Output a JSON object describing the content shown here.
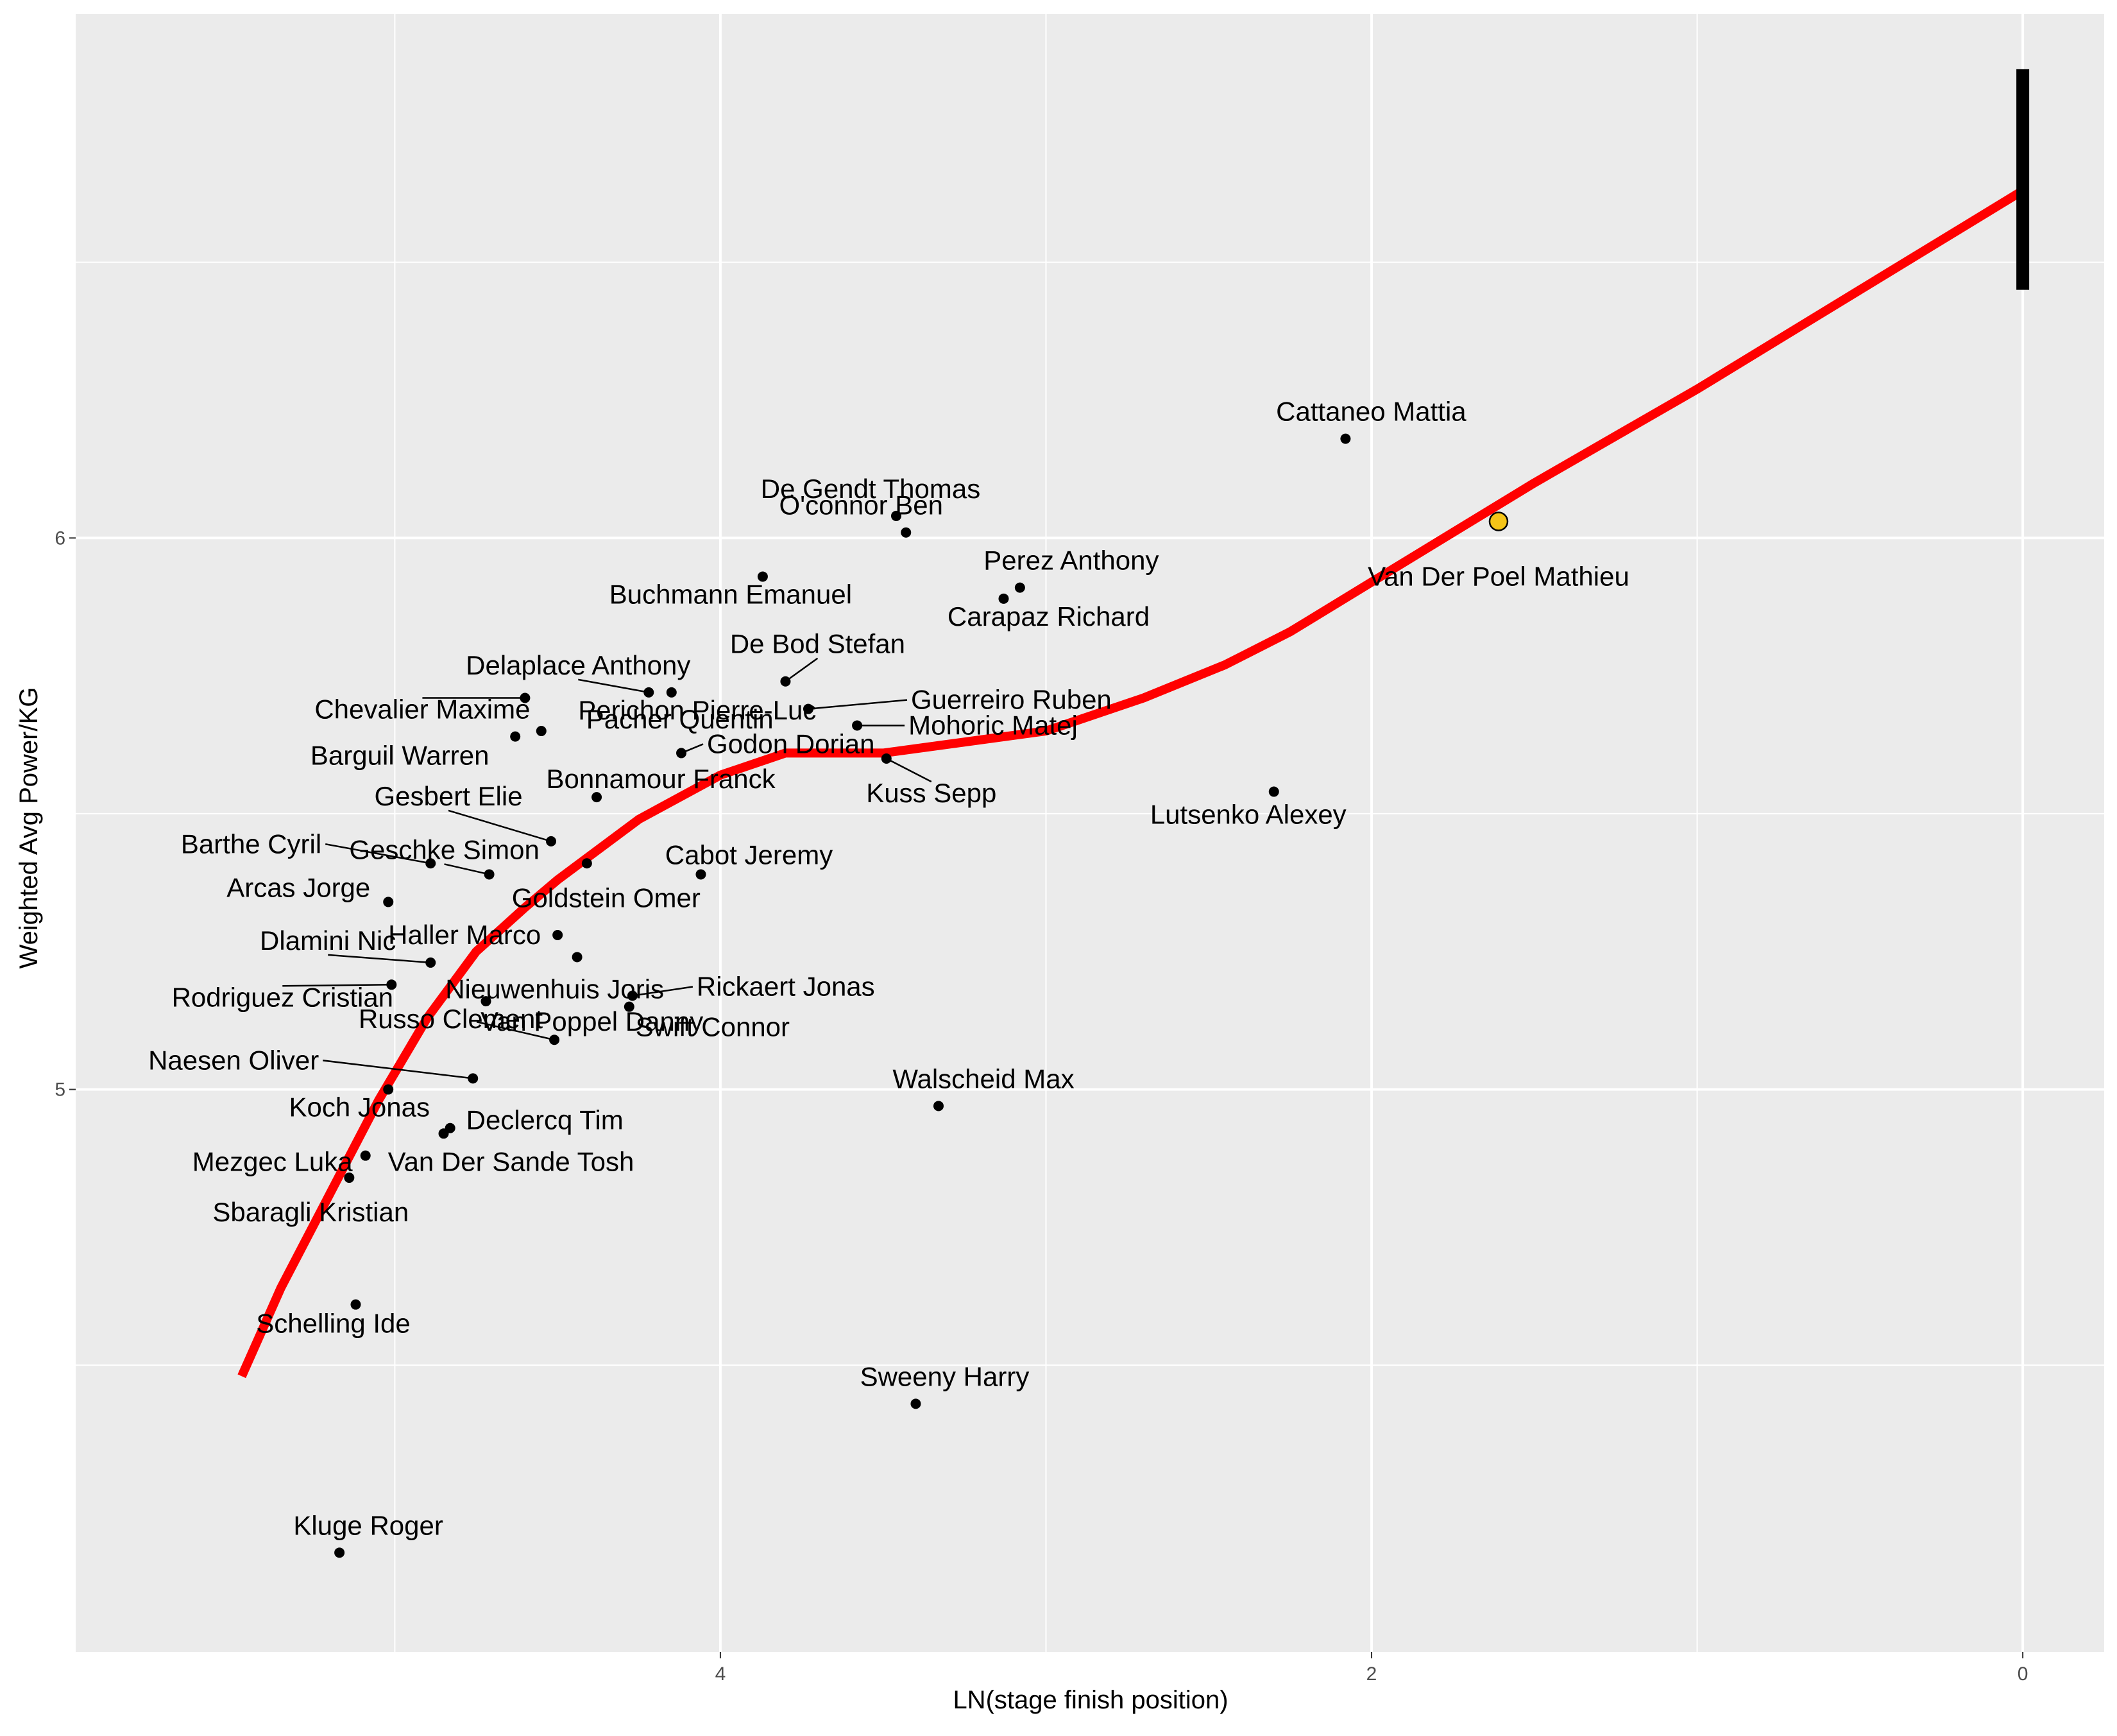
{
  "chart_data": {
    "type": "scatter",
    "xlabel": "LN(stage finish position)",
    "ylabel": "Weighted Avg Power/KG",
    "x_reversed": true,
    "xlim": [
      5.98,
      -0.25
    ],
    "ylim": [
      3.98,
      6.95
    ],
    "xticks": [
      4,
      2,
      0
    ],
    "yticks": [
      5,
      6
    ],
    "grid": true,
    "legend": "none",
    "colors": {
      "panel": "#ebebeb",
      "grid": "#ffffff",
      "points": "#000000",
      "trend_line": "#ff0000",
      "highlight_fill": "#f5c518",
      "error_bar": "#000000",
      "tick_text": "#4d4d4d"
    },
    "points": [
      {
        "name": "Cattaneo Mattia",
        "x": 2.08,
        "y": 6.18
      },
      {
        "name": "De Gendt Thomas",
        "x": 3.46,
        "y": 6.04
      },
      {
        "name": "O'connor Ben",
        "x": 3.43,
        "y": 6.01
      },
      {
        "name": "Buchmann Emanuel",
        "x": 3.87,
        "y": 5.93
      },
      {
        "name": "Perez Anthony",
        "x": 3.08,
        "y": 5.91
      },
      {
        "name": "Carapaz Richard",
        "x": 3.13,
        "y": 5.89
      },
      {
        "name": "De Bod Stefan",
        "x": 3.8,
        "y": 5.74
      },
      {
        "name": "Delaplace Anthony",
        "x": 4.22,
        "y": 5.72
      },
      {
        "name": "Perichon Pierre-Luc",
        "x": 4.15,
        "y": 5.72
      },
      {
        "name": "Chevalier Maxime",
        "x": 4.6,
        "y": 5.71
      },
      {
        "name": "Guerreiro Ruben",
        "x": 3.73,
        "y": 5.69
      },
      {
        "name": "Pacher Quentin",
        "x": 4.55,
        "y": 5.65
      },
      {
        "name": "Mohoric Matej",
        "x": 3.58,
        "y": 5.66
      },
      {
        "name": "Barguil Warren",
        "x": 4.63,
        "y": 5.64
      },
      {
        "name": "Godon Dorian",
        "x": 4.12,
        "y": 5.61
      },
      {
        "name": "Kuss Sepp",
        "x": 3.49,
        "y": 5.6
      },
      {
        "name": "Bonnamour Franck",
        "x": 4.38,
        "y": 5.53
      },
      {
        "name": "Lutsenko Alexey",
        "x": 2.3,
        "y": 5.54
      },
      {
        "name": "Gesbert Elie",
        "x": 4.52,
        "y": 5.45
      },
      {
        "name": "Barthe Cyril",
        "x": 4.89,
        "y": 5.41
      },
      {
        "name": "Geschke Simon",
        "x": 4.71,
        "y": 5.39
      },
      {
        "name": "Goldstein Omer",
        "x": 4.41,
        "y": 5.41
      },
      {
        "name": "Cabot Jeremy",
        "x": 4.06,
        "y": 5.39
      },
      {
        "name": "Arcas Jorge",
        "x": 5.02,
        "y": 5.34
      },
      {
        "name": "Haller Marco",
        "x": 4.5,
        "y": 5.28
      },
      {
        "name": "Nieuwenhuis Joris",
        "x": 4.44,
        "y": 5.24
      },
      {
        "name": "Dlamini Nic",
        "x": 4.89,
        "y": 5.23
      },
      {
        "name": "Rodriguez Cristian",
        "x": 5.01,
        "y": 5.19
      },
      {
        "name": "Rickaert Jonas",
        "x": 4.27,
        "y": 5.17
      },
      {
        "name": "Swift Connor",
        "x": 4.28,
        "y": 5.15
      },
      {
        "name": "Russo Clement",
        "x": 4.72,
        "y": 5.16
      },
      {
        "name": "Van Poppel Danny",
        "x": 4.51,
        "y": 5.09
      },
      {
        "name": "Naesen Oliver",
        "x": 4.76,
        "y": 5.02
      },
      {
        "name": "Walscheid Max",
        "x": 3.33,
        "y": 4.97
      },
      {
        "name": "Koch Jonas",
        "x": 5.02,
        "y": 5.0
      },
      {
        "name": "Declercq Tim",
        "x": 4.83,
        "y": 4.93
      },
      {
        "name": "Van Der Sande Tosh",
        "x": 4.85,
        "y": 4.92
      },
      {
        "name": "Mezgec Luka",
        "x": 5.09,
        "y": 4.88
      },
      {
        "name": "Sbaragli Kristian",
        "x": 5.14,
        "y": 4.84
      },
      {
        "name": "Schelling Ide",
        "x": 5.12,
        "y": 4.61
      },
      {
        "name": "Sweeny Harry",
        "x": 3.4,
        "y": 4.43
      },
      {
        "name": "Kluge Roger",
        "x": 5.17,
        "y": 4.16
      }
    ],
    "highlight": {
      "name": "Van Der Poel Mathieu",
      "x": 1.61,
      "y": 6.03
    },
    "trend_line": {
      "x": [
        5.47,
        5.35,
        5.2,
        5.05,
        4.9,
        4.75,
        4.6,
        4.5,
        4.25,
        4.0,
        3.8,
        3.5,
        3.0,
        2.7,
        2.45,
        2.25,
        2.0,
        1.5,
        1.0,
        0.5,
        0.0
      ],
      "y": [
        4.48,
        4.64,
        4.81,
        4.98,
        5.13,
        5.25,
        5.33,
        5.38,
        5.49,
        5.57,
        5.61,
        5.61,
        5.65,
        5.71,
        5.77,
        5.83,
        5.92,
        6.1,
        6.27,
        6.45,
        6.63
      ]
    },
    "error_bar": {
      "x": 0.0,
      "ymin": 6.45,
      "ymax": 6.85
    }
  }
}
